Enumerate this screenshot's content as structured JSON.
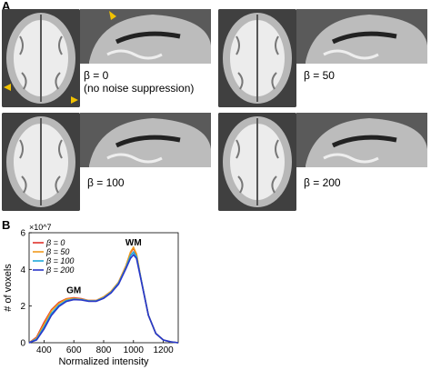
{
  "panels": {
    "a_label": "A",
    "b_label": "B"
  },
  "figure_a": {
    "items": [
      {
        "beta_label": "β = 0",
        "note": "(no noise suppression)"
      },
      {
        "beta_label": "β = 50"
      },
      {
        "beta_label": "β = 100"
      },
      {
        "beta_label": "β = 200"
      }
    ],
    "arrow_color": "#f2c200"
  },
  "chart_data": {
    "type": "line",
    "xlabel": "Normalized intensity",
    "ylabel": "# of voxels",
    "y_multiplier": "×10^7",
    "xlim": [
      300,
      1300
    ],
    "ylim": [
      0,
      6
    ],
    "xticks": [
      400,
      600,
      800,
      1000,
      1200
    ],
    "yticks": [
      0,
      2,
      4,
      6
    ],
    "grid": false,
    "legend_position": "top-left",
    "annotations": [
      {
        "text": "GM",
        "x": 600,
        "y": 2.4
      },
      {
        "text": "WM",
        "x": 1000,
        "y": 5.0
      }
    ],
    "x": [
      300,
      350,
      400,
      450,
      500,
      550,
      600,
      650,
      700,
      750,
      800,
      850,
      900,
      950,
      980,
      1000,
      1020,
      1050,
      1100,
      1150,
      1200,
      1250,
      1300
    ],
    "series": [
      {
        "name": "β = 0",
        "color": "#e0322a",
        "values": [
          0.0,
          0.3,
          1.1,
          1.8,
          2.2,
          2.4,
          2.45,
          2.4,
          2.3,
          2.3,
          2.5,
          2.8,
          3.3,
          4.2,
          4.9,
          5.15,
          4.8,
          3.5,
          1.5,
          0.5,
          0.15,
          0.05,
          0.0
        ]
      },
      {
        "name": "β = 50",
        "color": "#f09a1c",
        "values": [
          0.0,
          0.25,
          1.0,
          1.75,
          2.15,
          2.38,
          2.42,
          2.38,
          2.3,
          2.3,
          2.5,
          2.8,
          3.3,
          4.2,
          4.95,
          5.2,
          4.85,
          3.5,
          1.5,
          0.5,
          0.15,
          0.05,
          0.0
        ]
      },
      {
        "name": "β = 100",
        "color": "#1fa8d8",
        "values": [
          0.0,
          0.2,
          0.85,
          1.6,
          2.05,
          2.3,
          2.38,
          2.35,
          2.28,
          2.28,
          2.45,
          2.75,
          3.25,
          4.1,
          4.75,
          4.95,
          4.7,
          3.5,
          1.5,
          0.5,
          0.15,
          0.05,
          0.0
        ]
      },
      {
        "name": "β = 200",
        "color": "#2a36c8",
        "values": [
          0.0,
          0.15,
          0.75,
          1.5,
          1.98,
          2.25,
          2.35,
          2.33,
          2.26,
          2.26,
          2.42,
          2.72,
          3.2,
          4.05,
          4.6,
          4.8,
          4.6,
          3.45,
          1.5,
          0.5,
          0.15,
          0.05,
          0.0
        ]
      }
    ]
  }
}
